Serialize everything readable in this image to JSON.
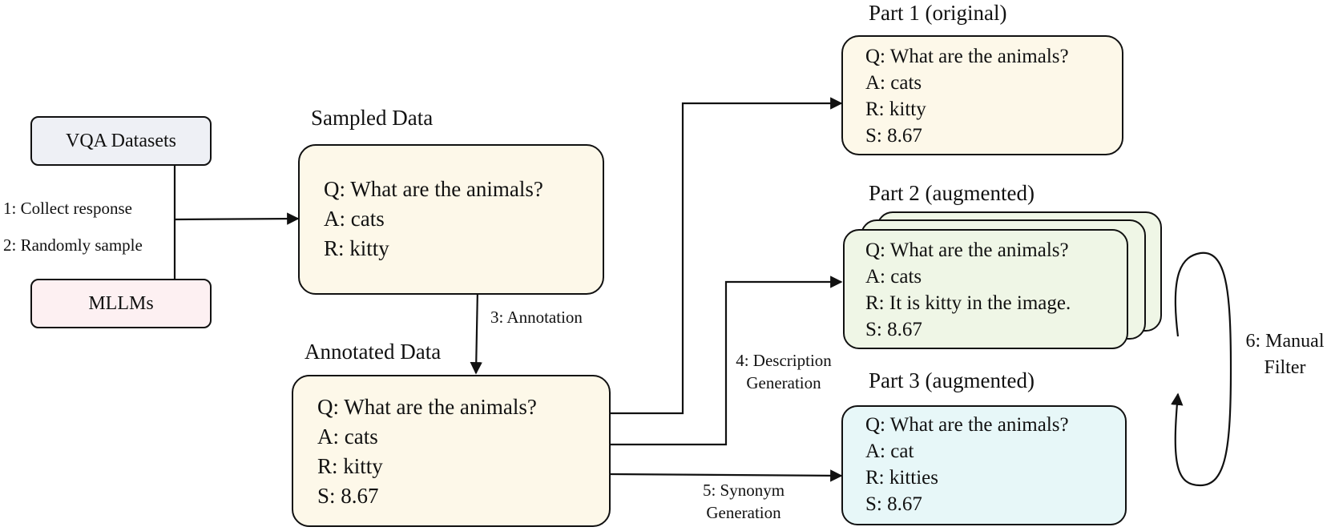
{
  "sources": {
    "vqa": "VQA Datasets",
    "mllms": "MLLMs"
  },
  "steps": {
    "collect": "1: Collect response",
    "sample": "2: Randomly sample",
    "annotation": "3: Annotation",
    "description_1": "4: Description",
    "description_2": "Generation",
    "synonym_1": "5: Synonym",
    "synonym_2": "Generation",
    "filter_1": "6: Manual",
    "filter_2": "Filter"
  },
  "sampled": {
    "title": "Sampled Data",
    "q": "Q: What are the animals?",
    "a": "A: cats",
    "r": "R: kitty"
  },
  "annotated": {
    "title": "Annotated Data",
    "q": "Q: What are the animals?",
    "a": "A: cats",
    "r": "R: kitty",
    "s": "S: 8.67"
  },
  "part1": {
    "title": "Part 1 (original)",
    "q": "Q: What are the animals?",
    "a": "A: cats",
    "r": "R: kitty",
    "s": "S: 8.67"
  },
  "part2": {
    "title": "Part 2 (augmented)",
    "q": "Q: What are the animals?",
    "a": "A: cats",
    "r": "R: It is kitty in the image.",
    "s": "S: 8.67"
  },
  "part3": {
    "title": "Part 3 (augmented)",
    "q": "Q: What are the animals?",
    "a": "A: cat",
    "r": "R: kitties",
    "s": "S: 8.67"
  },
  "colors": {
    "vqa_fill": "#eef0f5",
    "mllms_fill": "#fdf0f2",
    "cream_fill": "#fdf8e9",
    "green_fill": "#eff6e6",
    "cyan_fill": "#e7f7f8",
    "stroke": "#111111"
  }
}
